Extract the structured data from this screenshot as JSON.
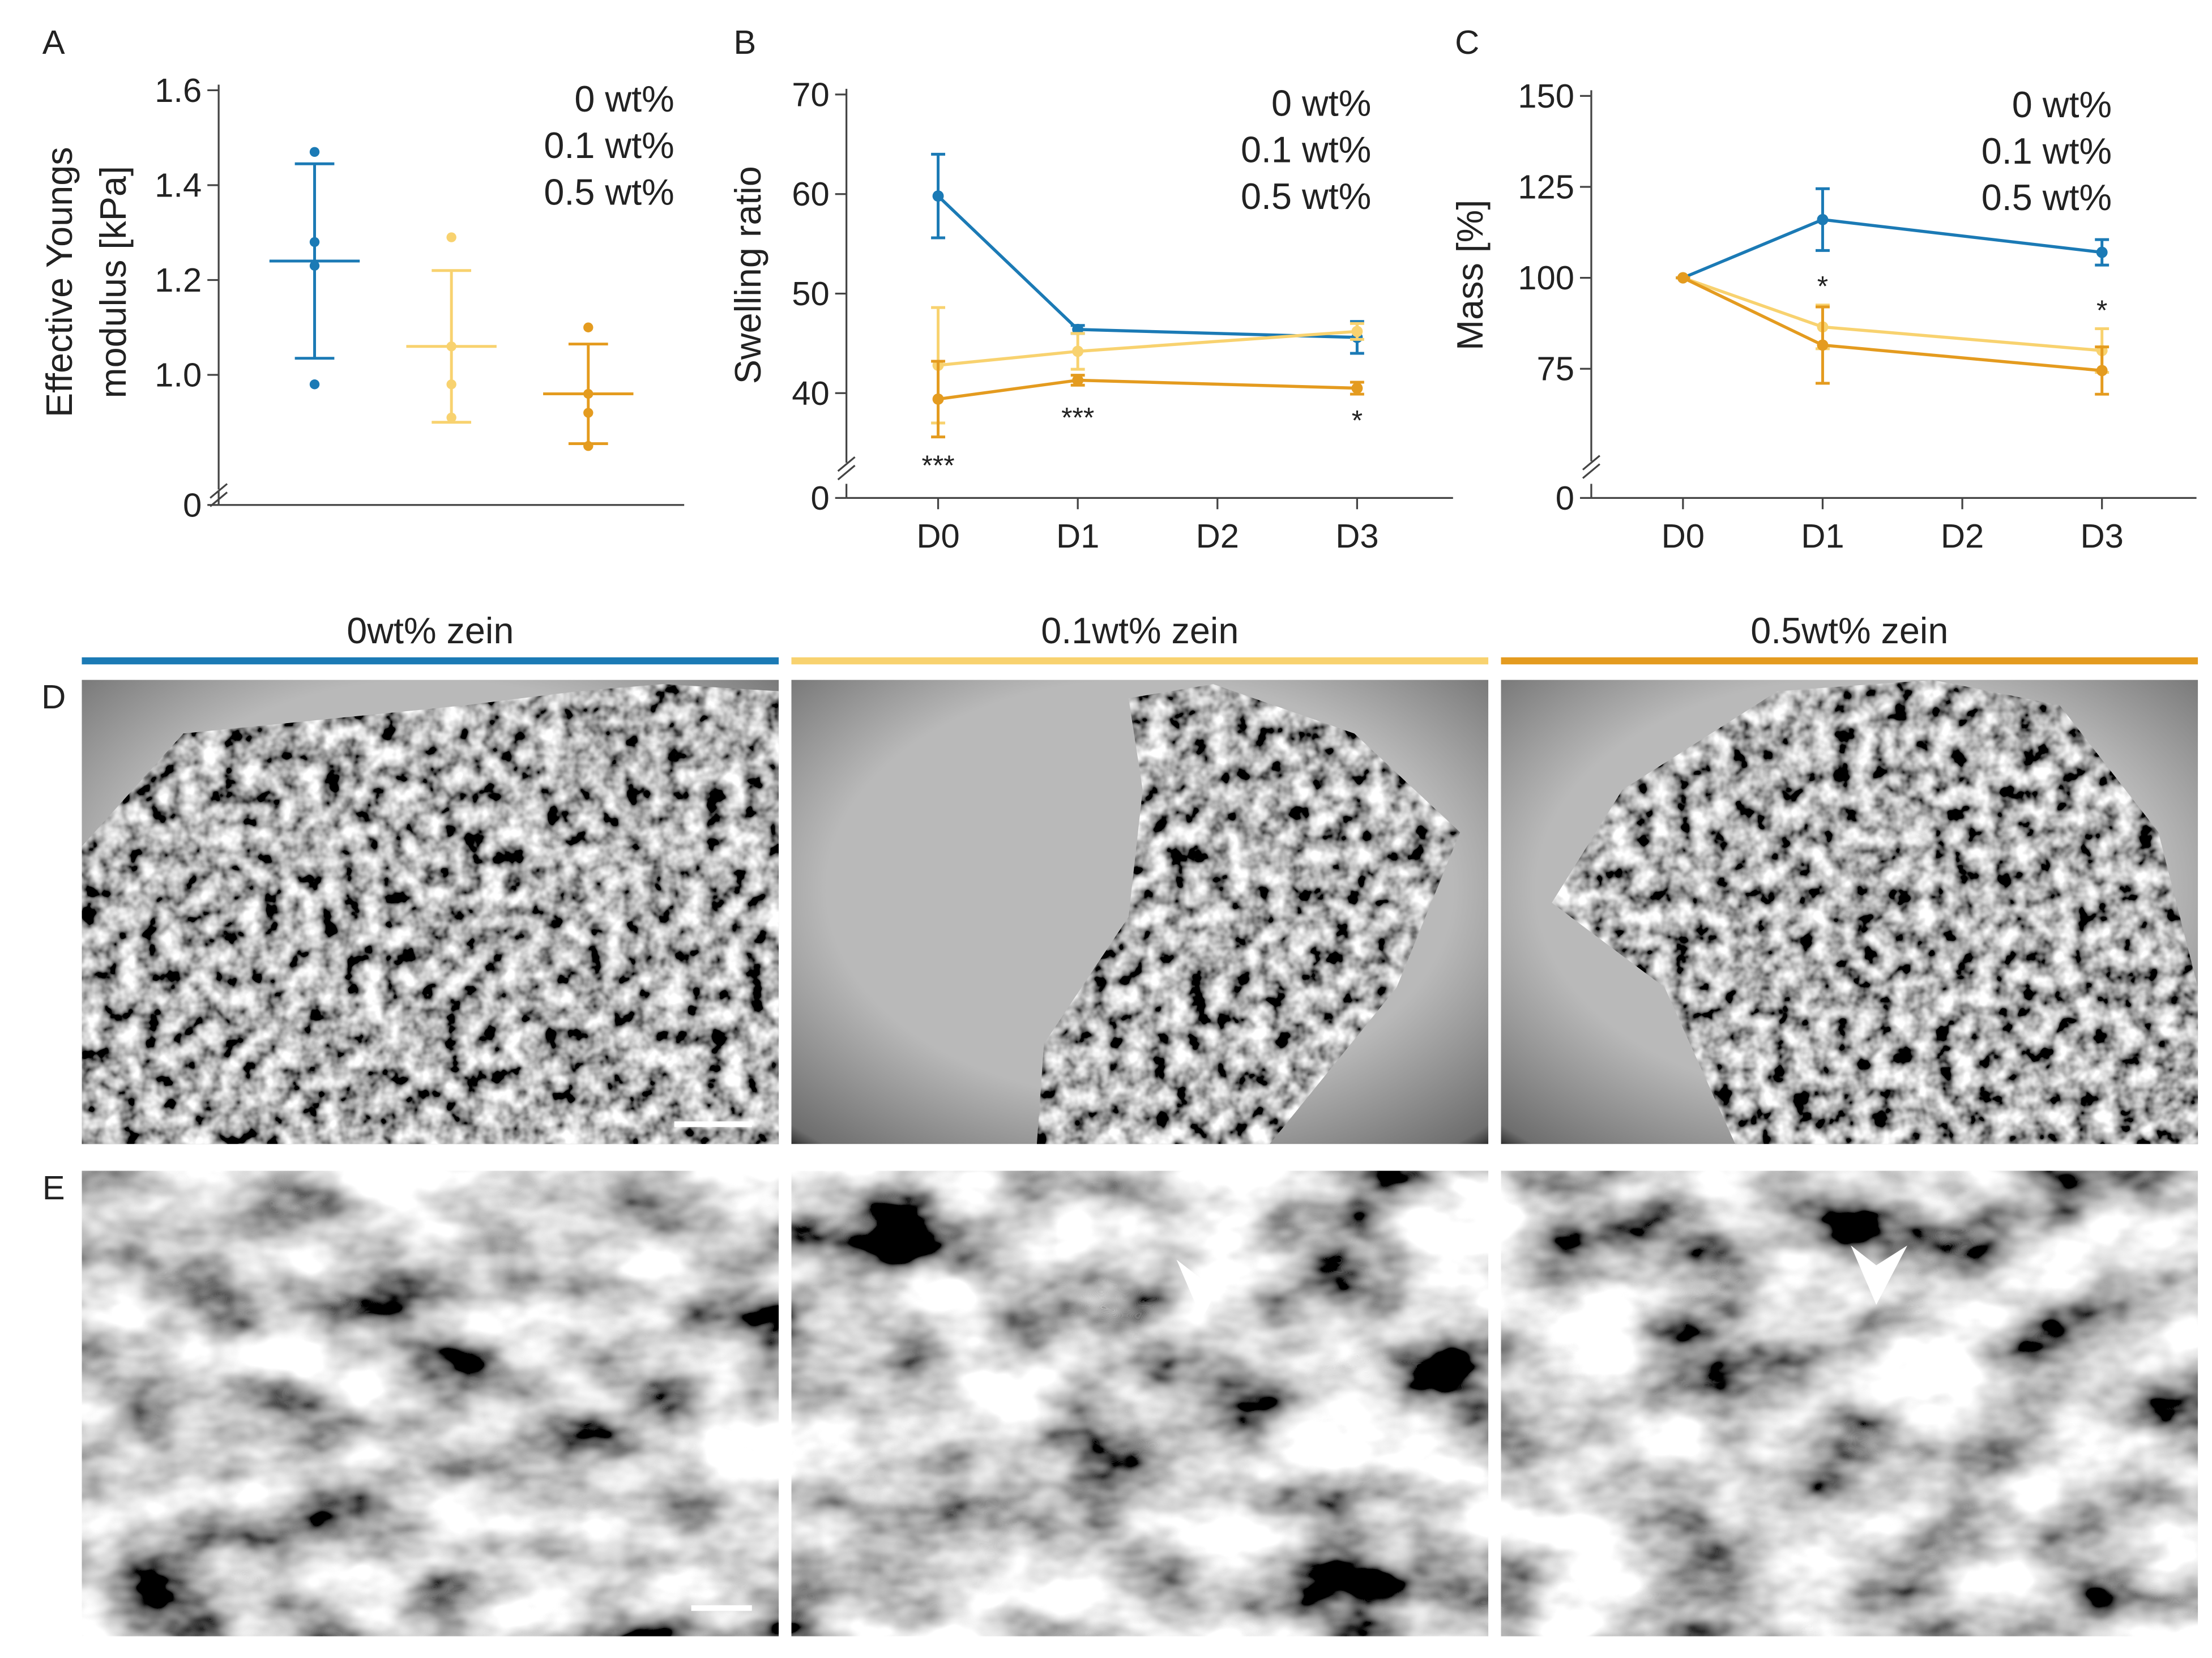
{
  "chart_data": [
    {
      "type": "strip",
      "panel_label": "A",
      "ylabel": [
        "Effective Youngs",
        "modulus [kPa]"
      ],
      "ylim": [
        0.8,
        1.6
      ],
      "yticks": [
        {
          "value": 1.0,
          "label": "1.0"
        },
        1.2,
        1.4,
        1.6
      ],
      "yticks_below_break": [
        0
      ],
      "series": [
        {
          "name": "0 wt%",
          "color": "#1b7ab5",
          "values": [
            1.47,
            1.28,
            1.23,
            0.98
          ],
          "mean": 1.24,
          "sd": 0.205
        },
        {
          "name": "0.1 wt%",
          "color": "#f8d26f",
          "values": [
            1.29,
            1.06,
            0.98,
            0.91
          ],
          "mean": 1.06,
          "sd": 0.16
        },
        {
          "name": "0.5 wt%",
          "color": "#e49b1f",
          "values": [
            1.1,
            0.96,
            0.92,
            0.85
          ],
          "mean": 0.96,
          "sd": 0.105
        }
      ]
    },
    {
      "type": "line",
      "panel_label": "B",
      "ylabel": [
        "Swelling ratio"
      ],
      "categories": [
        "D0",
        "D1",
        "D2",
        "D3"
      ],
      "ylim": [
        35,
        70
      ],
      "yticks": [
        40,
        50,
        60,
        70
      ],
      "yticks_below_break": [
        0
      ],
      "series": [
        {
          "name": "0 wt%",
          "color": "#1b7ab5",
          "x": [
            "D0",
            "D1",
            "D3"
          ],
          "values": [
            59.8,
            46.4,
            45.6
          ],
          "errors": [
            4.2,
            0.4,
            1.6
          ]
        },
        {
          "name": "0.1 wt%",
          "color": "#f8d26f",
          "x": [
            "D0",
            "D1",
            "D3"
          ],
          "values": [
            42.8,
            44.2,
            46.2
          ],
          "errors": [
            5.8,
            1.8,
            0.8
          ]
        },
        {
          "name": "0.5 wt%",
          "color": "#e49b1f",
          "x": [
            "D0",
            "D1",
            "D3"
          ],
          "values": [
            39.4,
            41.3,
            40.5
          ],
          "errors": [
            3.8,
            0.5,
            0.6
          ]
        }
      ],
      "annotations": [
        {
          "text": "***",
          "category": "D0"
        },
        {
          "text": "***",
          "category": "D1"
        },
        {
          "text": "*",
          "category": "D3"
        }
      ]
    },
    {
      "type": "line",
      "panel_label": "C",
      "ylabel": [
        "Mass [%]"
      ],
      "categories": [
        "D0",
        "D1",
        "D2",
        "D3"
      ],
      "ylim": [
        55,
        150
      ],
      "yticks": [
        75,
        100,
        125,
        150
      ],
      "yticks_below_break": [
        0
      ],
      "series": [
        {
          "name": "0 wt%",
          "color": "#1b7ab5",
          "x": [
            "D0",
            "D1",
            "D3"
          ],
          "values": [
            100,
            116,
            107
          ],
          "errors": [
            0,
            8.5,
            3.5
          ]
        },
        {
          "name": "0.1 wt%",
          "color": "#f8d26f",
          "x": [
            "D0",
            "D1",
            "D3"
          ],
          "values": [
            100,
            86.5,
            80
          ],
          "errors": [
            0,
            6,
            6
          ]
        },
        {
          "name": "0.5 wt%",
          "color": "#e49b1f",
          "x": [
            "D0",
            "D1",
            "D3"
          ],
          "values": [
            100,
            81.5,
            74.5
          ],
          "errors": [
            0,
            10.5,
            6.5
          ]
        }
      ],
      "annotations": [
        {
          "text": "*",
          "category": "D1"
        },
        {
          "text": "*",
          "category": "D3"
        }
      ]
    }
  ],
  "images": {
    "row_labels": [
      "D",
      "E"
    ],
    "columns": [
      {
        "title": "0wt% zein",
        "color": "#1b7ab5"
      },
      {
        "title": "0.1wt% zein",
        "color": "#f8d26f"
      },
      {
        "title": "0.5wt% zein",
        "color": "#e49b1f"
      }
    ]
  }
}
